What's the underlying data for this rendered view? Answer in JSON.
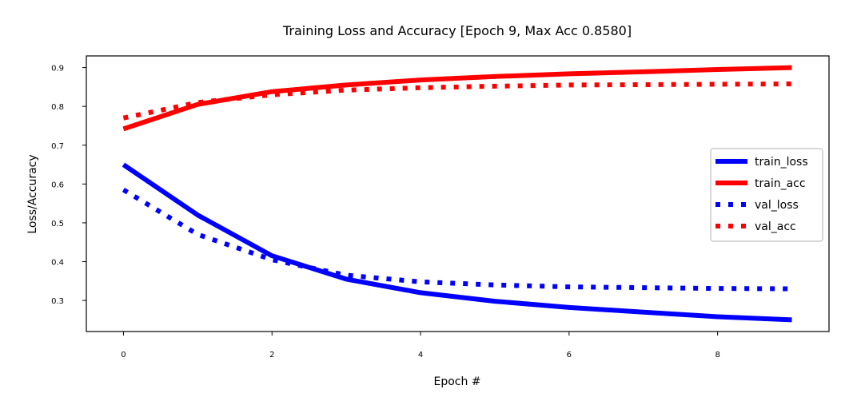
{
  "chart_data": {
    "type": "line",
    "title": "Training Loss and Accuracy [Epoch 9, Max Acc 0.8580]",
    "xlabel": "Epoch #",
    "ylabel": "Loss/Accuracy",
    "xlim": [
      -0.5,
      9.5
    ],
    "ylim": [
      0.22,
      0.93
    ],
    "xticks": [
      0,
      2,
      4,
      6,
      8
    ],
    "xtick_labels": [
      "0",
      "2",
      "4",
      "6",
      "8"
    ],
    "yticks": [
      0.3,
      0.4,
      0.5,
      0.6,
      0.7,
      0.8,
      0.9
    ],
    "ytick_labels": [
      "0.3",
      "0.4",
      "0.5",
      "0.6",
      "0.7",
      "0.8",
      "0.9"
    ],
    "grid": false,
    "legend_position": "center-right",
    "x": [
      0,
      1,
      2,
      3,
      4,
      5,
      6,
      7,
      8,
      9
    ],
    "series": [
      {
        "name": "train_loss",
        "color": "#0000ff",
        "style": "solid",
        "values": [
          0.65,
          0.52,
          0.415,
          0.355,
          0.32,
          0.298,
          0.282,
          0.27,
          0.258,
          0.25
        ]
      },
      {
        "name": "train_acc",
        "color": "#ff0000",
        "style": "solid",
        "values": [
          0.742,
          0.805,
          0.838,
          0.855,
          0.868,
          0.877,
          0.884,
          0.889,
          0.895,
          0.9
        ]
      },
      {
        "name": "val_loss",
        "color": "#0000ff",
        "style": "dotted",
        "values": [
          0.585,
          0.47,
          0.405,
          0.365,
          0.348,
          0.34,
          0.335,
          0.333,
          0.331,
          0.33
        ]
      },
      {
        "name": "val_acc",
        "color": "#ff0000",
        "style": "dotted",
        "values": [
          0.77,
          0.81,
          0.83,
          0.842,
          0.848,
          0.852,
          0.855,
          0.856,
          0.857,
          0.858
        ]
      }
    ]
  }
}
